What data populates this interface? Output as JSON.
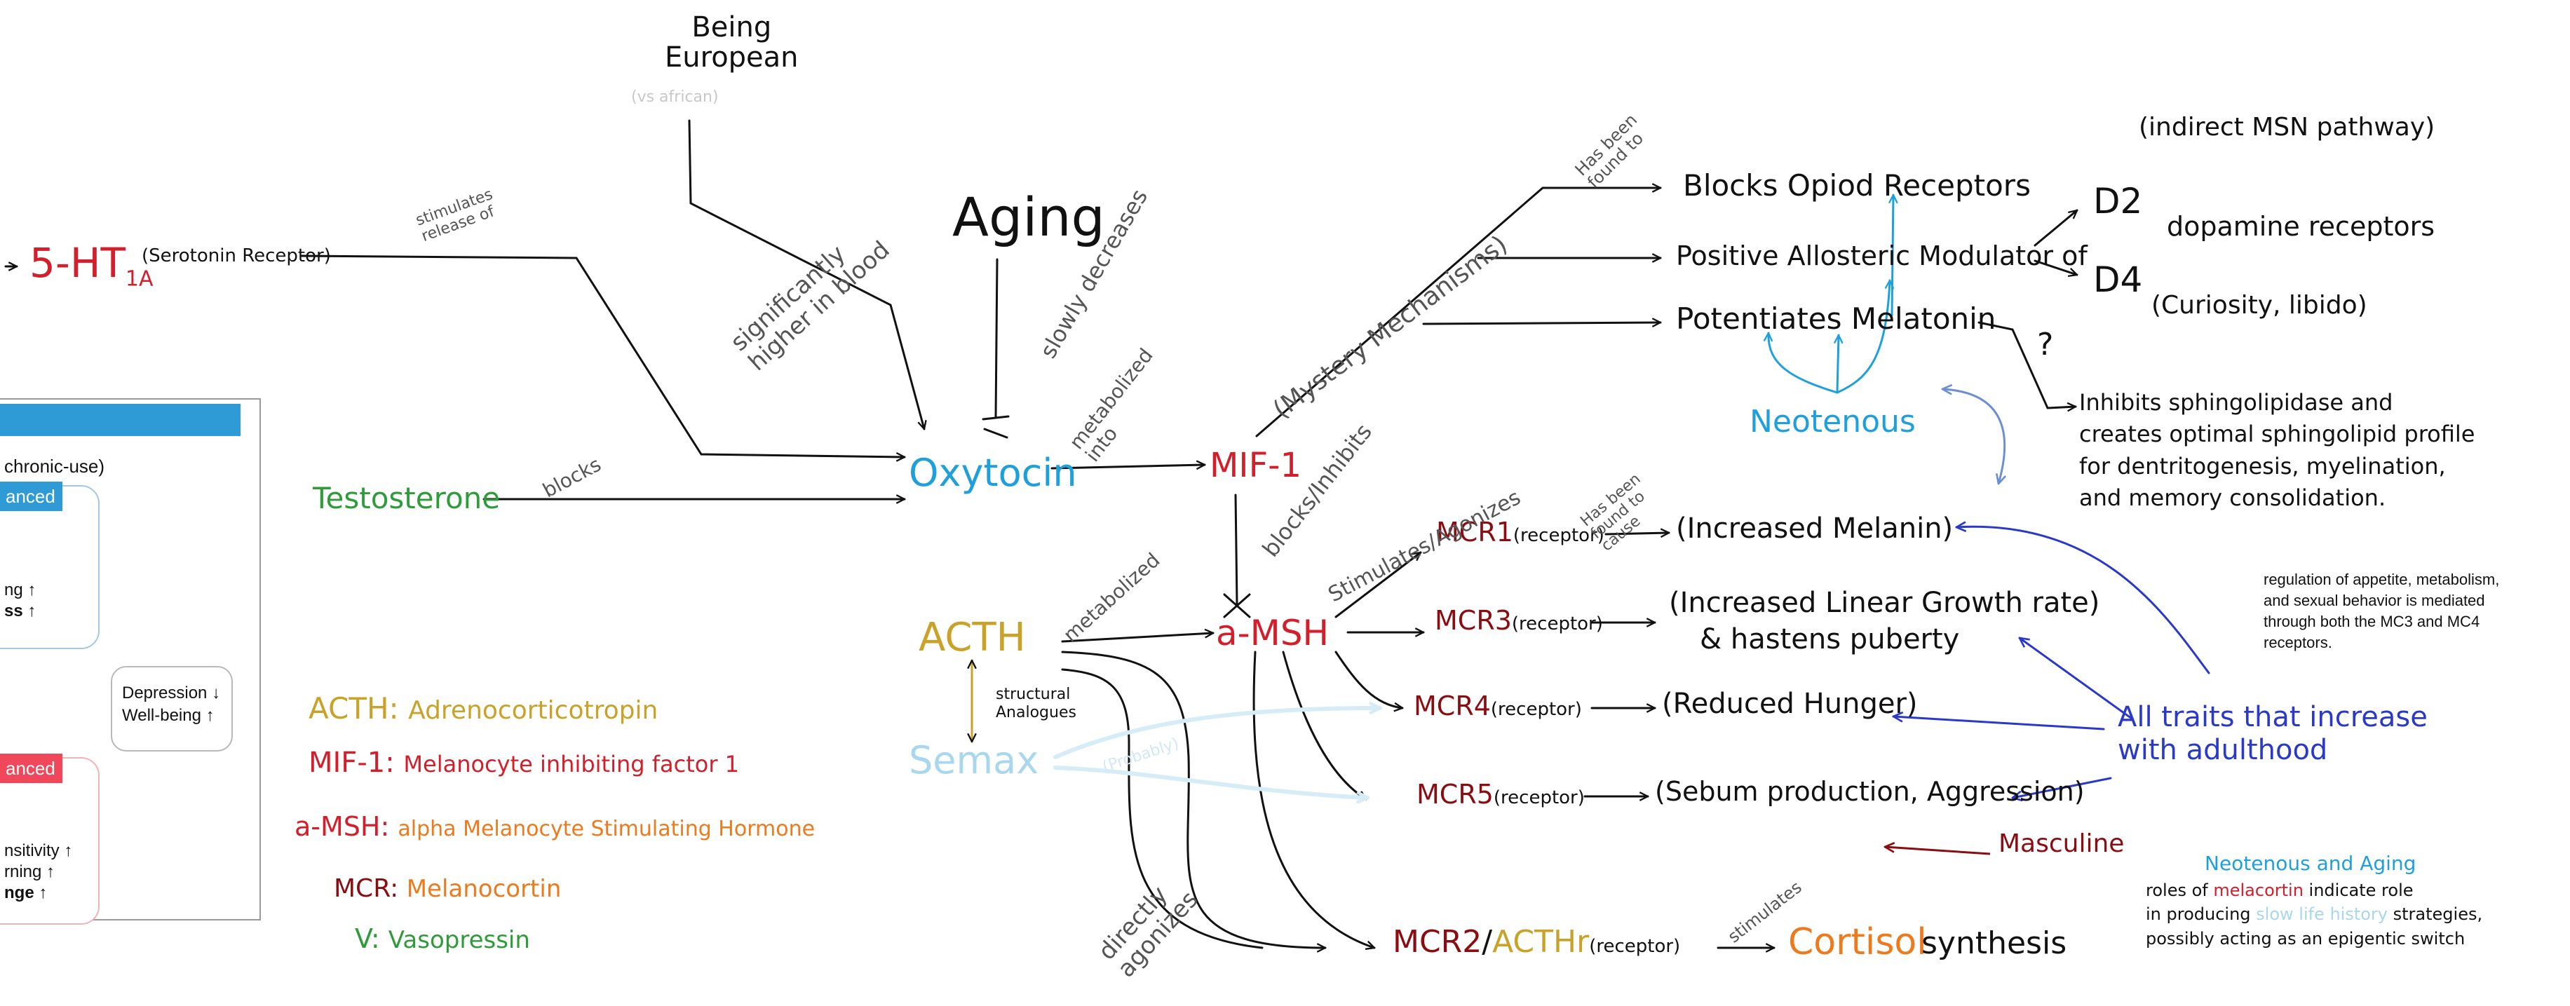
{
  "nodes": {
    "being_european": "Being\nEuropean",
    "vs_african": "(vs african)",
    "aging": "Aging",
    "ht1a_main": "5-HT",
    "ht1a_sub": "1A",
    "serotonin_receptor": "(Serotonin Receptor)",
    "testosterone": "Testosterone",
    "oxytocin": "Oxytocin",
    "mif1": "MIF-1",
    "acth": "ACTH",
    "semax": "Semax",
    "amsh": "a-MSH",
    "mcr1": "MCR1",
    "mcr3": "MCR3",
    "mcr4": "MCR4",
    "mcr5": "MCR5",
    "mcr2": "MCR2",
    "acthr": "ACTHr",
    "receptor": "(receptor)",
    "increased_melanin": "(Increased Melanin)",
    "linear_growth_line1": "(Increased Linear Growth rate)",
    "linear_growth_line2": "& hastens puberty",
    "reduced_hunger": "(Reduced Hunger)",
    "sebum": "(Sebum production, Aggression)",
    "cortisol": "Cortisol",
    "synthesis": "synthesis",
    "blocks_opioid": "Blocks Opiod Receptors",
    "positive_allosteric": "Positive Allosteric Modulator of",
    "potentiates_melatonin": "Potentiates Melatonin",
    "d2": "D2",
    "d4": "D4",
    "indirect_msn": "(indirect MSN pathway)",
    "dopamine_receptors": "dopamine receptors",
    "curiosity_libido": "(Curiosity, libido)",
    "question_mark": "?",
    "inhibits_sphingo": "Inhibits sphingolipidase and\ncreates optimal sphingolipid profile\nfor dentritogenesis, myelination,\nand memory consolidation.",
    "neotenous": "Neotenous",
    "all_traits": "All traits that increase\nwith adulthood",
    "masculine": "Masculine"
  },
  "edge_labels": {
    "stimulates_release": "stimulates\nrelease of",
    "sig_higher": "significantly\nhigher in blood",
    "slowly_decreases": "slowly decreases",
    "blocks": "blocks",
    "metabolized_into": "metabolized\ninto",
    "mystery": "(Mystery Mechanisms)",
    "found_to": "Has been\nfound to",
    "blocks_inhibits": "blocks/Inhibits",
    "stim_agonizes": "Stimulates/Agonizes",
    "found_to_cause": "Has been\nfound to\ncause",
    "metabolized": "metabolized",
    "structural_analogues": "structural\nAnalogues",
    "probably": "(Probably)",
    "directly_agonizes": "directly\nagonizes",
    "stimulates": "stimulates"
  },
  "legend": {
    "acth_key": "ACTH:",
    "acth_value": "Adrenocorticotropin",
    "mif1_key": "MIF-1:",
    "mif1_value": "Melanocyte inhibiting factor 1",
    "amsh_key": "a-MSH:",
    "amsh_value": "alpha Melanocyte Stimulating Hormone",
    "mcr_key": "MCR:",
    "mcr_value": "Melanocortin",
    "v_key": "V:",
    "v_value": "Vasopressin"
  },
  "note": "regulation of appetite, metabolism, and sexual behavior is mediated through both the MC3 and MC4 receptors.",
  "neo_aging": {
    "title": "Neotenous and Aging",
    "line1_a": "roles of ",
    "line1_b": "melacortin",
    "line1_c": " indicate role",
    "line2_a": "in producing ",
    "line2_b": "slow life history",
    "line2_c": " strategies,",
    "line3": "possibly acting as an epigentic switch"
  },
  "inset": {
    "subtitle": "chronic-use)",
    "badge_top": "anced",
    "badge_bottom": "anced",
    "top_line1": "ng ↑",
    "top_line2": "ss ↑",
    "result_line1": "Depression ↓",
    "result_line2": "Well-being ↑",
    "bottom_line1": "nsitivity ↑",
    "bottom_line2": "rning ↑",
    "bottom_line3": "nge ↑"
  },
  "colors": {
    "ink": "#111111",
    "oxytocin_cyan": "#1fa0dc",
    "semax_pale": "#a9d7ee",
    "serotonin_red": "#d21f2b",
    "mcr_dark_red": "#8a0d12",
    "acth_gold": "#c9a22a",
    "testosterone_green": "#2f9b3b",
    "legend_orange": "#ee7a1e",
    "traits_blue": "#2b39c8",
    "inset_blue": "#2e9ad6",
    "inset_red": "#f0475a"
  }
}
